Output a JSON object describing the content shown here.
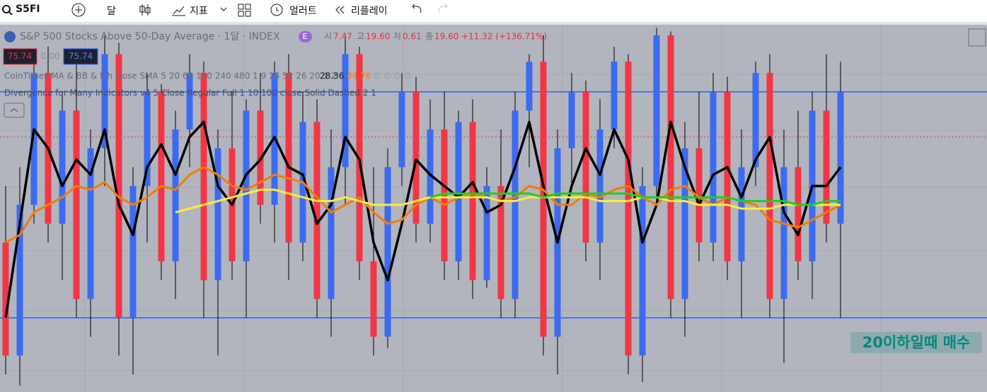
{
  "toolbar": {
    "symbol": "S5FI",
    "interval": "달",
    "indicators": "지표",
    "alert": "얼러트",
    "replay": "리플레이"
  },
  "legend": {
    "title": "S&P 500 Stocks Above 50-Day Average · 1달 · INDEX",
    "badge": "E",
    "open_label": "시",
    "open": "7.47",
    "high_label": "고",
    "high": "19.60",
    "low_label": "저",
    "low": "0.61",
    "close_label": "종",
    "close": "19.60",
    "change": "+11.32 (+136.71%)",
    "price_boxes": [
      "75.74",
      "0.00",
      "75.74"
    ],
    "indicator1": "CoinTimes MA & BB & Ich close SMA 5 20 60 120 240 480 1 9 26 52 26 20 1 2",
    "indicator1_values": [
      "28.36",
      "44.76",
      "∅ ∅ ∅ ∅"
    ],
    "indicator2": "Divergence for Many Indicators v4 5 Close Regular Full 1 10 100 close Solid Dashed 2 1"
  },
  "chart_data": {
    "type": "candlestick",
    "annotation": "20이하일때 매수",
    "ylim": [
      0,
      97
    ],
    "hlines": [
      80,
      20
    ],
    "price_line": 68,
    "candles": [
      [
        40,
        55,
        5,
        10
      ],
      [
        10,
        60,
        2,
        50
      ],
      [
        50,
        90,
        45,
        85
      ],
      [
        85,
        92,
        40,
        45
      ],
      [
        45,
        80,
        30,
        75
      ],
      [
        75,
        88,
        20,
        25
      ],
      [
        25,
        70,
        15,
        65
      ],
      [
        65,
        95,
        55,
        90
      ],
      [
        90,
        93,
        10,
        20
      ],
      [
        20,
        60,
        5,
        55
      ],
      [
        55,
        85,
        40,
        80
      ],
      [
        80,
        82,
        30,
        35
      ],
      [
        35,
        75,
        25,
        70
      ],
      [
        70,
        90,
        60,
        85
      ],
      [
        85,
        88,
        20,
        30
      ],
      [
        30,
        70,
        10,
        65
      ],
      [
        65,
        80,
        30,
        35
      ],
      [
        35,
        78,
        20,
        75
      ],
      [
        75,
        85,
        45,
        50
      ],
      [
        50,
        88,
        40,
        85
      ],
      [
        85,
        90,
        30,
        40
      ],
      [
        40,
        80,
        35,
        72
      ],
      [
        72,
        78,
        20,
        25
      ],
      [
        25,
        70,
        15,
        60
      ],
      [
        60,
        95,
        50,
        90
      ],
      [
        90,
        92,
        30,
        35
      ],
      [
        35,
        60,
        10,
        15
      ],
      [
        15,
        65,
        12,
        60
      ],
      [
        60,
        85,
        55,
        80
      ],
      [
        80,
        84,
        40,
        45
      ],
      [
        45,
        78,
        40,
        70
      ],
      [
        70,
        80,
        30,
        35
      ],
      [
        35,
        75,
        30,
        72
      ],
      [
        72,
        78,
        25,
        30
      ],
      [
        30,
        60,
        28,
        55
      ],
      [
        55,
        70,
        20,
        25
      ],
      [
        25,
        80,
        20,
        75
      ],
      [
        75,
        90,
        60,
        88
      ],
      [
        88,
        95,
        10,
        15
      ],
      [
        15,
        70,
        5,
        65
      ],
      [
        65,
        85,
        55,
        80
      ],
      [
        80,
        83,
        35,
        40
      ],
      [
        40,
        78,
        30,
        70
      ],
      [
        70,
        92,
        65,
        88
      ],
      [
        88,
        90,
        5,
        10
      ],
      [
        10,
        60,
        3,
        55
      ],
      [
        55,
        97,
        50,
        95
      ],
      [
        95,
        96,
        20,
        25
      ],
      [
        25,
        72,
        15,
        65
      ],
      [
        65,
        80,
        35,
        40
      ],
      [
        40,
        85,
        35,
        80
      ],
      [
        80,
        84,
        30,
        35
      ],
      [
        35,
        70,
        20,
        60
      ],
      [
        60,
        88,
        55,
        85
      ],
      [
        85,
        90,
        20,
        25
      ],
      [
        25,
        70,
        8,
        60
      ],
      [
        60,
        75,
        30,
        35
      ],
      [
        35,
        80,
        25,
        75
      ],
      [
        75,
        90,
        40,
        45
      ],
      [
        45,
        88,
        20,
        80
      ]
    ],
    "series": [
      {
        "color": "#000000",
        "values": [
          20,
          45,
          70,
          65,
          55,
          62,
          58,
          70,
          50,
          42,
          60,
          66,
          58,
          68,
          72,
          55,
          50,
          58,
          62,
          68,
          60,
          58,
          45,
          50,
          68,
          62,
          40,
          30,
          45,
          62,
          58,
          55,
          52,
          56,
          48,
          50,
          60,
          72,
          55,
          40,
          55,
          65,
          58,
          70,
          62,
          40,
          50,
          72,
          60,
          50,
          58,
          60,
          52,
          62,
          68,
          48,
          42,
          55,
          55,
          60
        ]
      },
      {
        "color": "#f57c00",
        "values": [
          40,
          42,
          48,
          50,
          52,
          55,
          54,
          56,
          52,
          50,
          52,
          55,
          54,
          58,
          60,
          58,
          55,
          54,
          56,
          58,
          57,
          56,
          52,
          48,
          50,
          52,
          48,
          45,
          46,
          50,
          52,
          50,
          52,
          53,
          52,
          51,
          52,
          55,
          54,
          50,
          50,
          53,
          52,
          54,
          55,
          52,
          50,
          54,
          55,
          52,
          50,
          52,
          51,
          50,
          46,
          45,
          44,
          46,
          48,
          50
        ]
      },
      {
        "color": "#ffeb3b",
        "values": [
          null,
          null,
          null,
          null,
          null,
          null,
          null,
          null,
          null,
          null,
          null,
          null,
          48,
          49,
          50,
          51,
          52,
          53,
          54,
          54,
          53,
          52,
          51,
          51,
          52,
          51,
          50,
          50,
          50,
          51,
          52,
          52,
          52,
          52,
          52,
          51,
          51,
          52,
          52,
          52,
          52,
          52,
          51,
          51,
          51,
          52,
          52,
          51,
          51,
          50,
          50,
          50,
          49,
          49,
          49,
          50,
          50,
          50,
          50,
          50
        ]
      },
      {
        "color": "#22cc22",
        "values": [
          null,
          null,
          null,
          null,
          null,
          null,
          null,
          null,
          null,
          null,
          null,
          null,
          null,
          null,
          null,
          null,
          null,
          null,
          null,
          null,
          null,
          null,
          null,
          null,
          null,
          null,
          null,
          null,
          null,
          null,
          52,
          53,
          53,
          53,
          53,
          53,
          53,
          53,
          52,
          53,
          53,
          53,
          53,
          53,
          53,
          52,
          52,
          52,
          52,
          52,
          52,
          52,
          51,
          51,
          51,
          51,
          50,
          50,
          51,
          51
        ]
      }
    ]
  }
}
